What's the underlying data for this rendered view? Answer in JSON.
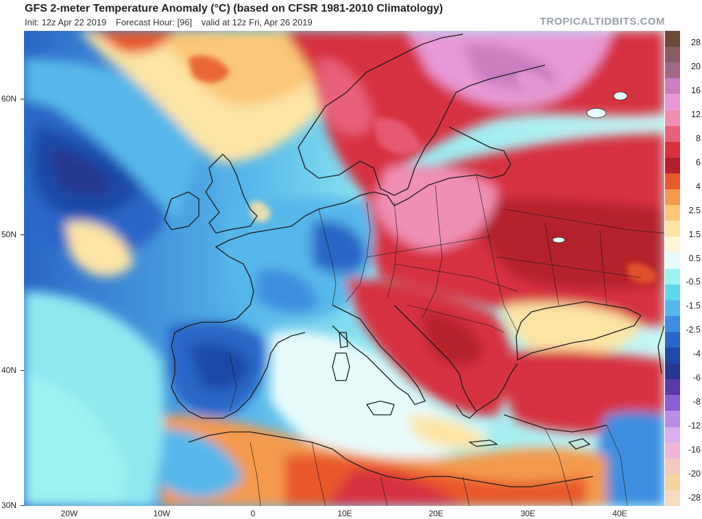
{
  "header": {
    "title": "GFS 2-meter Temperature Anomaly (°C) (based on CFSR 1981-2010 Climatology)",
    "init": "Init: 12z Apr 22 2019",
    "forecast_hour": "Forecast Hour: [96]",
    "valid": "valid at 12z Fri, Apr 26 2019",
    "brand": "TROPICALTIDBITS.COM"
  },
  "axes": {
    "lat_labels": [
      "60N",
      "50N",
      "40N",
      "30N"
    ],
    "lon_labels": [
      "20W",
      "10W",
      "0",
      "10E",
      "20E",
      "30E",
      "40E"
    ]
  },
  "colorbar": {
    "labels": [
      "28",
      "20",
      "16",
      "12",
      "8",
      "6",
      "4",
      "2.5",
      "1.5",
      "0.5",
      "-0.5",
      "-1.5",
      "-2.5",
      "-4",
      "-6",
      "-8",
      "-12",
      "-16",
      "-20",
      "-28"
    ],
    "colors": [
      "#6b4a3a",
      "#8a5a64",
      "#a06a86",
      "#c97ec0",
      "#e79ad6",
      "#f08fb4",
      "#e8607a",
      "#d7303f",
      "#b3202b",
      "#e8592c",
      "#f49a4d",
      "#f9c878",
      "#fde4a5",
      "#fff6d8",
      "#e8fbfb",
      "#9ef2f2",
      "#5ed9ec",
      "#56b7ea",
      "#3d8ee0",
      "#2a66c8",
      "#1f48a8",
      "#283890",
      "#5a3aa8",
      "#8a5fd0",
      "#b98ce6",
      "#dcaef0",
      "#f0b6d8",
      "#f7c8c0",
      "#f6d3a0",
      "#f5dcbc"
    ]
  }
}
